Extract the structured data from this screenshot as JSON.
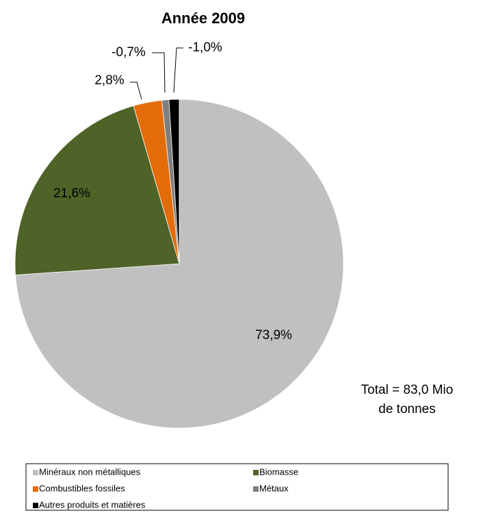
{
  "chart_data": {
    "type": "pie",
    "title": "Année 2009",
    "categories": [
      "Minéraux non métalliques",
      "Biomasse",
      "Combustibles fossiles",
      "Métaux",
      "Autres produits et matières"
    ],
    "values": [
      73.9,
      21.6,
      2.8,
      -0.7,
      -1.0
    ],
    "value_labels": [
      "73,9%",
      "21,6%",
      "2,8%",
      "-0,7%",
      "-1,0%"
    ],
    "colors": [
      "#c0c0c0",
      "#4f6228",
      "#e46c0a",
      "#7f7f7f",
      "#000000"
    ],
    "annotations": [
      "Total = 83,0 Mio",
      "de tonnes"
    ],
    "legend": "bottom"
  }
}
